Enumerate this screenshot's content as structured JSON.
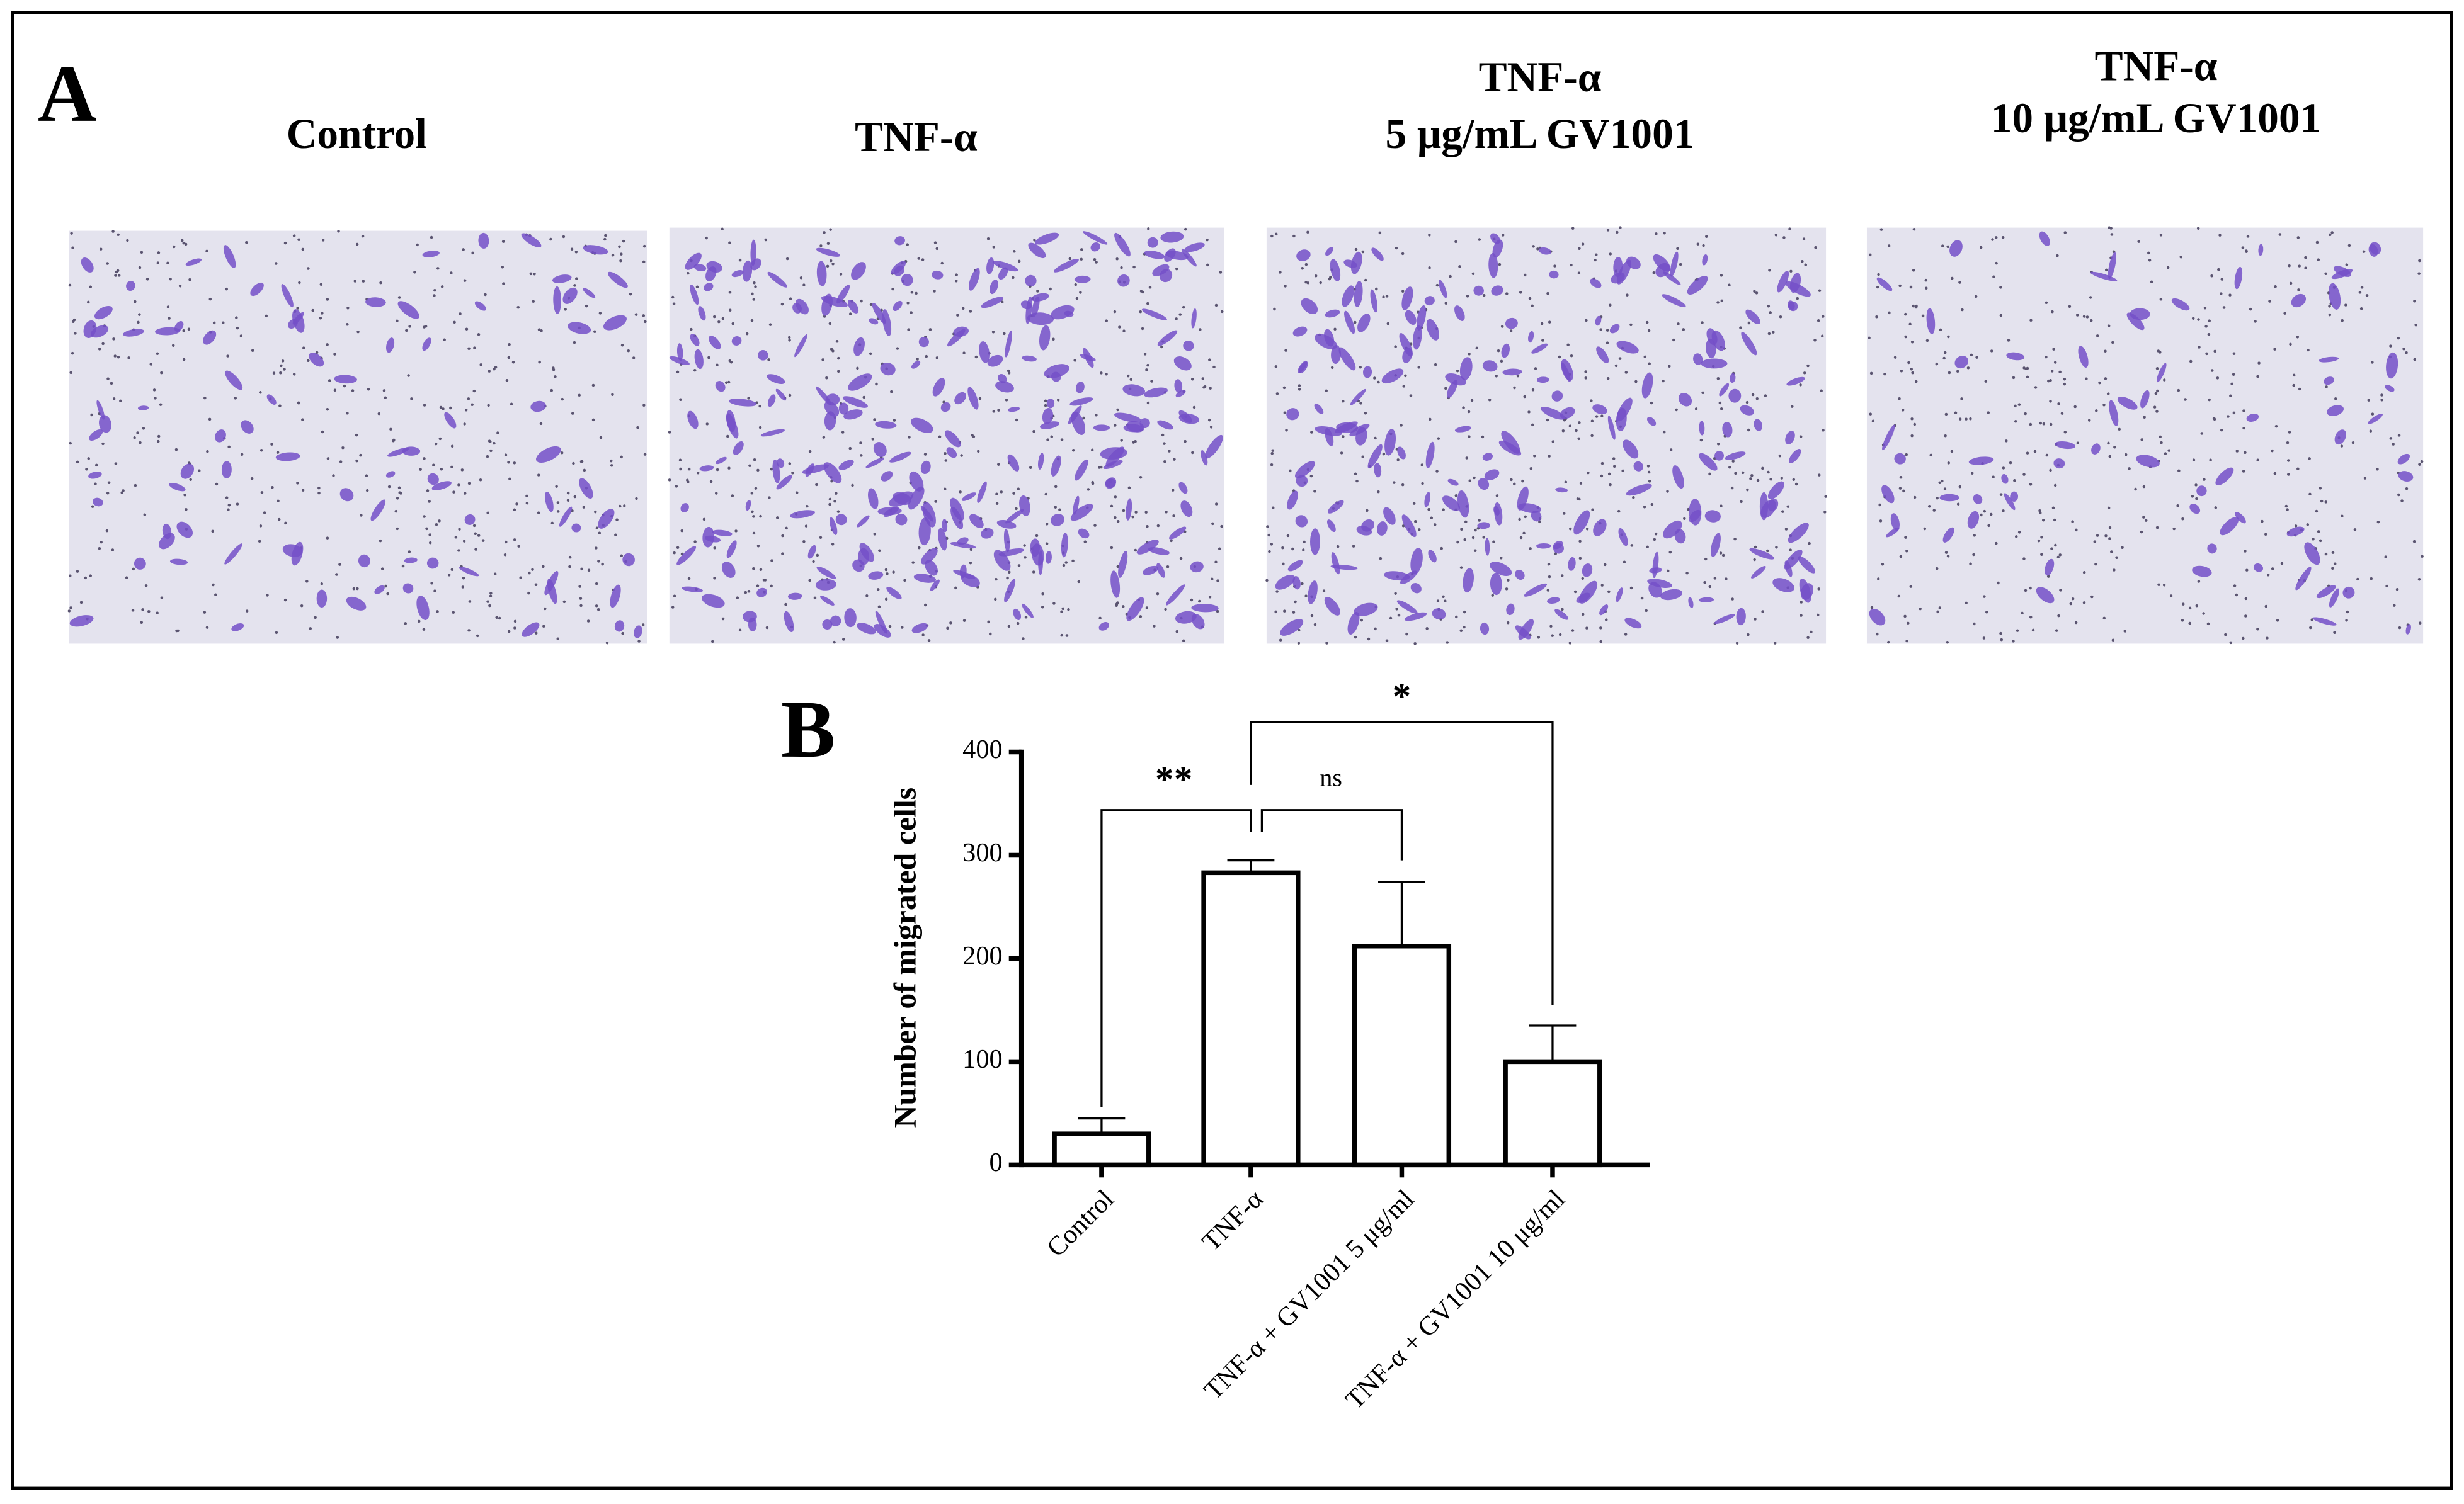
{
  "panel_a": {
    "label": "A",
    "titles": [
      [
        "Control"
      ],
      [
        "TNF-α"
      ],
      [
        "TNF-α",
        "5 μg/mL GV1001"
      ],
      [
        "TNF-α",
        "10 μg/mL GV1001"
      ]
    ]
  },
  "chart_data": {
    "type": "bar",
    "panel_label": "B",
    "ylabel": "Number of migrated cells",
    "categories": [
      "Control",
      "TNF-α",
      "TNF-α + GV1001 5 μg/ml",
      "TNF-α + GV1001 10 μg/ml"
    ],
    "values": [
      30,
      283,
      212,
      100
    ],
    "errors": [
      15,
      12,
      62,
      35
    ],
    "color": "#ffffff",
    "edge_color": "#000000",
    "ylim": [
      0,
      400
    ],
    "yticks": [
      0,
      100,
      200,
      300,
      400
    ],
    "annotations": [
      "**",
      "ns",
      "*"
    ]
  }
}
